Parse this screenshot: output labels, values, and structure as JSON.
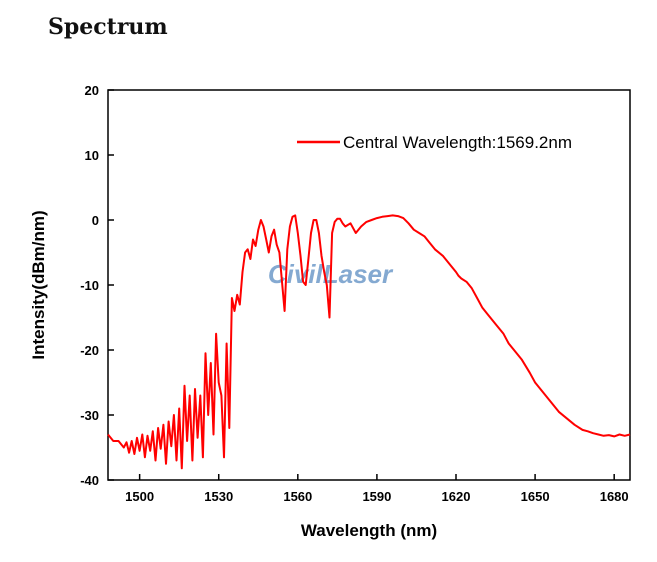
{
  "page": {
    "heading": "Spectrum"
  },
  "watermark": "CivilLaser",
  "chart_data": {
    "type": "line",
    "xlabel": "Wavelength (nm)",
    "ylabel": "Intensity(dBm/nm)",
    "xlim": [
      1488,
      1686
    ],
    "ylim": [
      -40,
      20
    ],
    "xticks": [
      1500,
      1530,
      1560,
      1590,
      1620,
      1650,
      1680
    ],
    "yticks": [
      -40,
      -30,
      -20,
      -10,
      0,
      10,
      20
    ],
    "grid": false,
    "legend_position": "top-right",
    "series": [
      {
        "name": "Central Wavelength:1569.2nm",
        "color": "#ff0000",
        "x": [
          1488,
          1490,
          1492,
          1494,
          1495,
          1496,
          1497,
          1498,
          1499,
          1500,
          1501,
          1502,
          1503,
          1504,
          1505,
          1506,
          1507,
          1508,
          1509,
          1510,
          1511,
          1512,
          1513,
          1514,
          1515,
          1516,
          1517,
          1518,
          1519,
          1520,
          1521,
          1522,
          1523,
          1524,
          1525,
          1526,
          1527,
          1528,
          1529,
          1530,
          1531,
          1532,
          1533,
          1534,
          1535,
          1536,
          1537,
          1538,
          1539,
          1540,
          1541,
          1542,
          1543,
          1544,
          1545,
          1546,
          1547,
          1548,
          1549,
          1550,
          1551,
          1552,
          1553,
          1554,
          1555,
          1556,
          1557,
          1558,
          1559,
          1560,
          1561,
          1562,
          1563,
          1564,
          1565,
          1566,
          1567,
          1568,
          1569,
          1570,
          1571,
          1572,
          1573,
          1574,
          1575,
          1576,
          1577,
          1578,
          1580,
          1582,
          1584,
          1586,
          1588,
          1590,
          1592,
          1594,
          1596,
          1598,
          1600,
          1602,
          1604,
          1606,
          1608,
          1610,
          1612,
          1615,
          1618,
          1620,
          1621,
          1622,
          1624,
          1626,
          1628,
          1630,
          1632,
          1635,
          1638,
          1640,
          1642,
          1645,
          1648,
          1650,
          1653,
          1656,
          1659,
          1662,
          1665,
          1668,
          1670,
          1672,
          1674,
          1676,
          1678,
          1680,
          1682,
          1684,
          1686
        ],
        "y": [
          -33,
          -34,
          -34,
          -35,
          -34.2,
          -35.8,
          -34,
          -36,
          -33.5,
          -35.5,
          -33,
          -36.5,
          -33.2,
          -35.5,
          -32.5,
          -37,
          -32,
          -35.2,
          -31.5,
          -37.5,
          -31,
          -34.8,
          -30,
          -37,
          -29,
          -38.2,
          -25.5,
          -34,
          -27,
          -37,
          -26,
          -33.5,
          -27,
          -36.5,
          -20.5,
          -30,
          -22,
          -33,
          -17.5,
          -25,
          -27,
          -36.5,
          -19,
          -32,
          -12,
          -14,
          -11.5,
          -13,
          -8,
          -5,
          -4.5,
          -6,
          -3,
          -4,
          -1.5,
          0,
          -1,
          -3,
          -5,
          -2.5,
          -1.5,
          -3.8,
          -5,
          -9.5,
          -14,
          -4.5,
          -1,
          0.5,
          0.7,
          -2,
          -5.5,
          -9.5,
          -10,
          -6,
          -2,
          0,
          0,
          -2,
          -5.5,
          -8,
          -10,
          -15,
          -2,
          -0.3,
          0.2,
          0.2,
          -0.5,
          -1,
          -0.5,
          -2,
          -1,
          -0.3,
          0,
          0.3,
          0.5,
          0.6,
          0.7,
          0.6,
          0.3,
          -0.5,
          -1.5,
          -2,
          -2.5,
          -3.5,
          -4.5,
          -5.5,
          -7,
          -8,
          -8.6,
          -9,
          -9.5,
          -10.5,
          -12,
          -13.5,
          -14.5,
          -16,
          -17.5,
          -19,
          -20,
          -21.5,
          -23.5,
          -25,
          -26.5,
          -28,
          -29.5,
          -30.5,
          -31.5,
          -32.3,
          -32.5,
          -32.8,
          -33,
          -33.2,
          -33.1,
          -33.3,
          -33,
          -33.2,
          -33
        ]
      }
    ]
  }
}
